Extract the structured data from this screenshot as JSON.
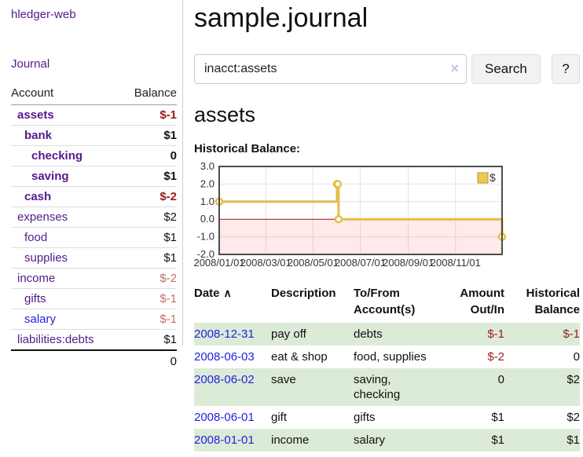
{
  "brand": {
    "label": "hledger-web"
  },
  "nav": {
    "journal_label": "Journal"
  },
  "sidebar": {
    "headers": {
      "account": "Account",
      "balance": "Balance"
    },
    "accounts": [
      {
        "name": "assets",
        "depth": 1,
        "bold": true,
        "balance": "$-1",
        "neg": "strong",
        "link": "purple"
      },
      {
        "name": "bank",
        "depth": 2,
        "bold": true,
        "balance": "$1",
        "neg": "none",
        "link": "purple"
      },
      {
        "name": "checking",
        "depth": 3,
        "bold": true,
        "balance": "0",
        "neg": "none",
        "link": "purple"
      },
      {
        "name": "saving",
        "depth": 3,
        "bold": true,
        "balance": "$1",
        "neg": "none",
        "link": "purple"
      },
      {
        "name": "cash",
        "depth": 2,
        "bold": true,
        "balance": "$-2",
        "neg": "strong",
        "link": "purple"
      },
      {
        "name": "expenses",
        "depth": 1,
        "bold": false,
        "balance": "$2",
        "neg": "none",
        "link": "purple"
      },
      {
        "name": "food",
        "depth": 2,
        "bold": false,
        "balance": "$1",
        "neg": "none",
        "link": "purple"
      },
      {
        "name": "supplies",
        "depth": 2,
        "bold": false,
        "balance": "$1",
        "neg": "none",
        "link": "purple"
      },
      {
        "name": "income",
        "depth": 1,
        "bold": false,
        "balance": "$-2",
        "neg": "weak",
        "link": "purple"
      },
      {
        "name": "gifts",
        "depth": 2,
        "bold": false,
        "balance": "$-1",
        "neg": "weak",
        "link": "purple"
      },
      {
        "name": "salary",
        "depth": 2,
        "bold": false,
        "balance": "$-1",
        "neg": "weak",
        "link": "blue"
      },
      {
        "name": "liabilities:debts",
        "depth": 1,
        "bold": false,
        "balance": "$1",
        "neg": "none",
        "link": "purple"
      }
    ],
    "total": "0"
  },
  "main": {
    "title": "sample.journal",
    "search": {
      "value": "inacct:assets",
      "clear_icon": "×",
      "search_button": "Search",
      "help_button": "?"
    },
    "account_title": "assets",
    "chart_label": "Historical Balance:"
  },
  "chart_data": {
    "type": "line",
    "style": "step",
    "title": "Historical Balance",
    "series": [
      {
        "name": "$",
        "points": [
          [
            "2008-01-01",
            1
          ],
          [
            "2008-06-01",
            2
          ],
          [
            "2008-06-02",
            2
          ],
          [
            "2008-06-03",
            0
          ],
          [
            "2008-12-31",
            -1
          ]
        ]
      }
    ],
    "xlim": [
      "2008-01-01",
      "2008-12-31"
    ],
    "ylim": [
      -2,
      3
    ],
    "yticks": [
      {
        "value": 3,
        "label": "3.0"
      },
      {
        "value": 2,
        "label": "2.0"
      },
      {
        "value": 1,
        "label": "1.0"
      },
      {
        "value": 0,
        "label": "0.0"
      },
      {
        "value": -1,
        "label": "-1.0"
      },
      {
        "value": -2,
        "label": "-2.0"
      }
    ],
    "xticks": [
      {
        "date": "2008-01-01",
        "label": "2008/01/01"
      },
      {
        "date": "2008-03-01",
        "label": "2008/03/01"
      },
      {
        "date": "2008-05-01",
        "label": "2008/05/01"
      },
      {
        "date": "2008-07-01",
        "label": "2008/07/01"
      },
      {
        "date": "2008-09-01",
        "label": "2008/09/01"
      },
      {
        "date": "2008-11-01",
        "label": "2008/11/01"
      }
    ],
    "legend": {
      "label": "$",
      "position": "top-right"
    },
    "grid": true,
    "negative_region_shaded": true,
    "colors": {
      "line": "#e4be4b",
      "legend_fill": "#ecc952",
      "legend_border": "#b8952e",
      "negative_fill": "rgba(255,70,70,0.12)",
      "zero_line": "#8b1a1a",
      "border": "#4d4d4d",
      "gridline": "#e3e3e3"
    }
  },
  "register": {
    "sort_icon": "∧",
    "columns": [
      {
        "line1": "Date",
        "line2": ""
      },
      {
        "line1": "Description",
        "line2": ""
      },
      {
        "line1": "To/From",
        "line2": "Account(s)"
      },
      {
        "line1": "Amount",
        "line2": "Out/In"
      },
      {
        "line1": "Historical",
        "line2": "Balance"
      }
    ],
    "rows": [
      {
        "date": "2008-12-31",
        "description": "pay off",
        "accounts": "debts",
        "amount": "$-1",
        "amount_negative": true,
        "balance": "$-1",
        "balance_negative": true
      },
      {
        "date": "2008-06-03",
        "description": "eat & shop",
        "accounts": "food, supplies",
        "amount": "$-2",
        "amount_negative": true,
        "balance": "0",
        "balance_negative": false
      },
      {
        "date": "2008-06-02",
        "description": "save",
        "accounts": "saving, checking",
        "amount": "0",
        "amount_negative": false,
        "balance": "$2",
        "balance_negative": false
      },
      {
        "date": "2008-06-01",
        "description": "gift",
        "accounts": "gifts",
        "amount": "$1",
        "amount_negative": false,
        "balance": "$2",
        "balance_negative": false
      },
      {
        "date": "2008-01-01",
        "description": "income",
        "accounts": "salary",
        "amount": "$1",
        "amount_negative": false,
        "balance": "$1",
        "balance_negative": false
      }
    ]
  },
  "colors": {
    "purple": "#551a8b",
    "blue": "#2222dd",
    "red_strong": "#9b1b1b",
    "red_weak": "#c46d6b",
    "stripe": "#dcebd7"
  }
}
